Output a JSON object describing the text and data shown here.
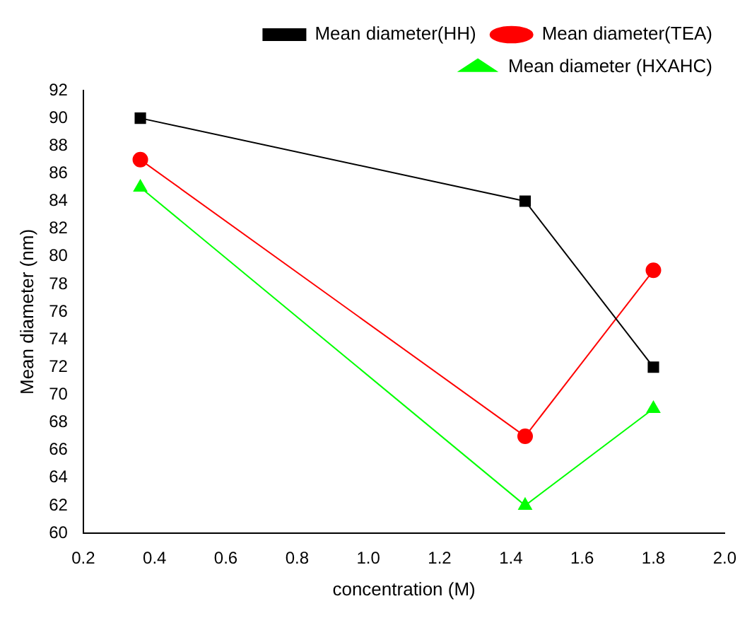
{
  "chart_data": {
    "type": "line",
    "xlabel": "concentration (M)",
    "ylabel": "Mean diameter (nm)",
    "xlim": [
      0.2,
      2.0
    ],
    "xticks": [
      0.2,
      0.4,
      0.6,
      0.8,
      {
        "value": 1.0,
        "label": "1.0"
      },
      1.2,
      1.4,
      1.6,
      1.8,
      {
        "value": 2.0,
        "label": "2.0"
      }
    ],
    "ylim": [
      60,
      92
    ],
    "yticks": [
      60,
      62,
      64,
      66,
      68,
      70,
      72,
      74,
      76,
      78,
      80,
      82,
      84,
      86,
      88,
      90,
      92
    ],
    "grid": false,
    "legend": "top right",
    "line_style": "solid",
    "series": [
      {
        "name": "Mean diameter(HH)",
        "color": "#000000",
        "marker": "square",
        "x": [
          0.36,
          1.44,
          1.8
        ],
        "values": [
          90,
          84,
          72
        ]
      },
      {
        "name": "Mean diameter(TEA)",
        "color": "#ff0000",
        "marker": "circle",
        "x": [
          0.36,
          1.44,
          1.8
        ],
        "values": [
          87,
          67,
          79
        ]
      },
      {
        "name": "Mean diameter (HXAHC)",
        "color": "#00ff00",
        "marker": "triangle",
        "x": [
          0.36,
          1.44,
          1.8
        ],
        "values": [
          85,
          62,
          69
        ]
      }
    ]
  }
}
